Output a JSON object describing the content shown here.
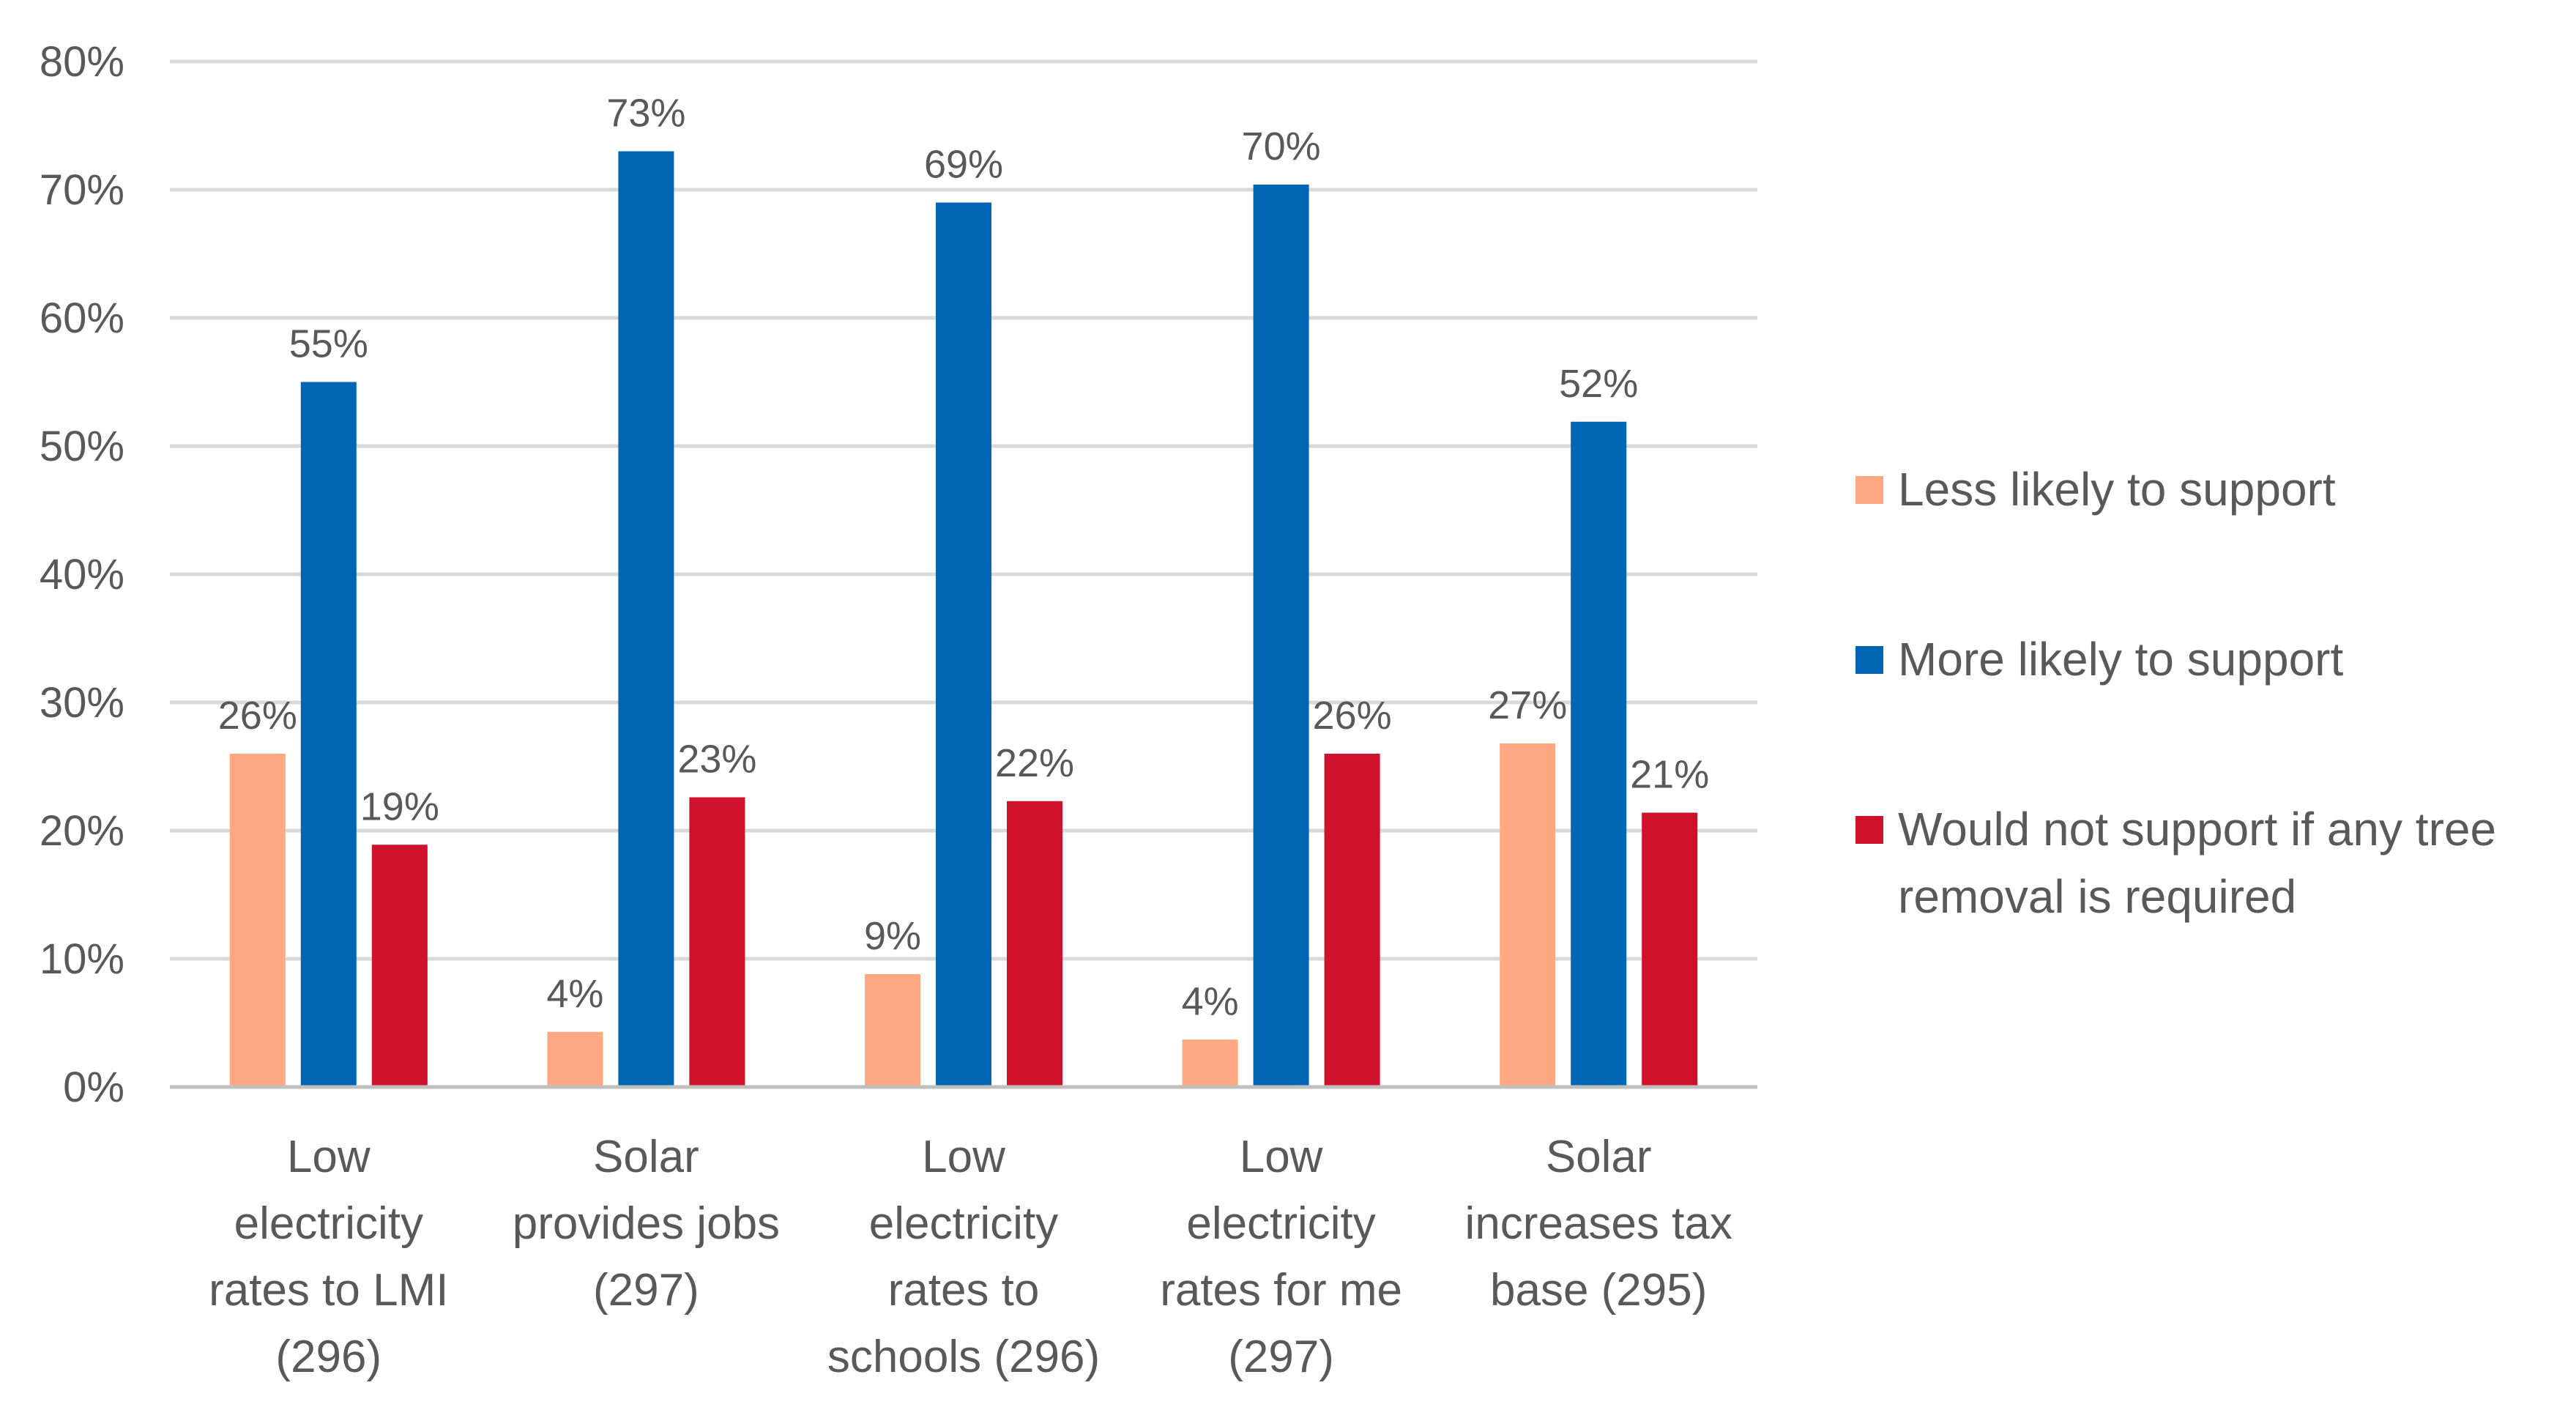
{
  "chart_data": {
    "type": "bar",
    "title": "",
    "xlabel": "",
    "ylabel": "",
    "ylim": [
      0,
      80
    ],
    "yticks": [
      0,
      10,
      20,
      30,
      40,
      50,
      60,
      70,
      80
    ],
    "ytick_labels": [
      "0%",
      "10%",
      "20%",
      "30%",
      "40%",
      "50%",
      "60%",
      "70%",
      "80%"
    ],
    "grid": true,
    "legend_position": "right",
    "categories": [
      [
        "Low",
        "electricity",
        "rates to LMI",
        "(296)"
      ],
      [
        "Solar",
        "provides jobs",
        "(297)"
      ],
      [
        "Low",
        "electricity",
        "rates to",
        "schools (296)"
      ],
      [
        "Low",
        "electricity",
        "rates for me",
        "(297)"
      ],
      [
        "Solar",
        "increases tax",
        "base (295)"
      ]
    ],
    "series": [
      {
        "name": "Less likely to support",
        "legend_lines": [
          "Less likely to support"
        ],
        "color": "#FFA881",
        "values": [
          26,
          4.3,
          8.8,
          3.7,
          26.8
        ],
        "labels": [
          "26%",
          "4%",
          "9%",
          "4%",
          "27%"
        ]
      },
      {
        "name": "More likely to support",
        "legend_lines": [
          "More likely to support"
        ],
        "color": "#0065B2",
        "values": [
          55,
          73,
          69,
          70.4,
          51.9
        ],
        "labels": [
          "55%",
          "73%",
          "69%",
          "70%",
          "52%"
        ]
      },
      {
        "name": "Would not support if any tree removal is required",
        "legend_lines": [
          "Would not support if any tree",
          "removal is required"
        ],
        "color": "#D0112B",
        "values": [
          18.9,
          22.6,
          22.3,
          26,
          21.4
        ],
        "labels": [
          "19%",
          "23%",
          "22%",
          "26%",
          "21%"
        ]
      }
    ],
    "colors": {
      "grid": "#d9d9d9",
      "axis": "#bfbfbf",
      "text": "#595959"
    }
  }
}
